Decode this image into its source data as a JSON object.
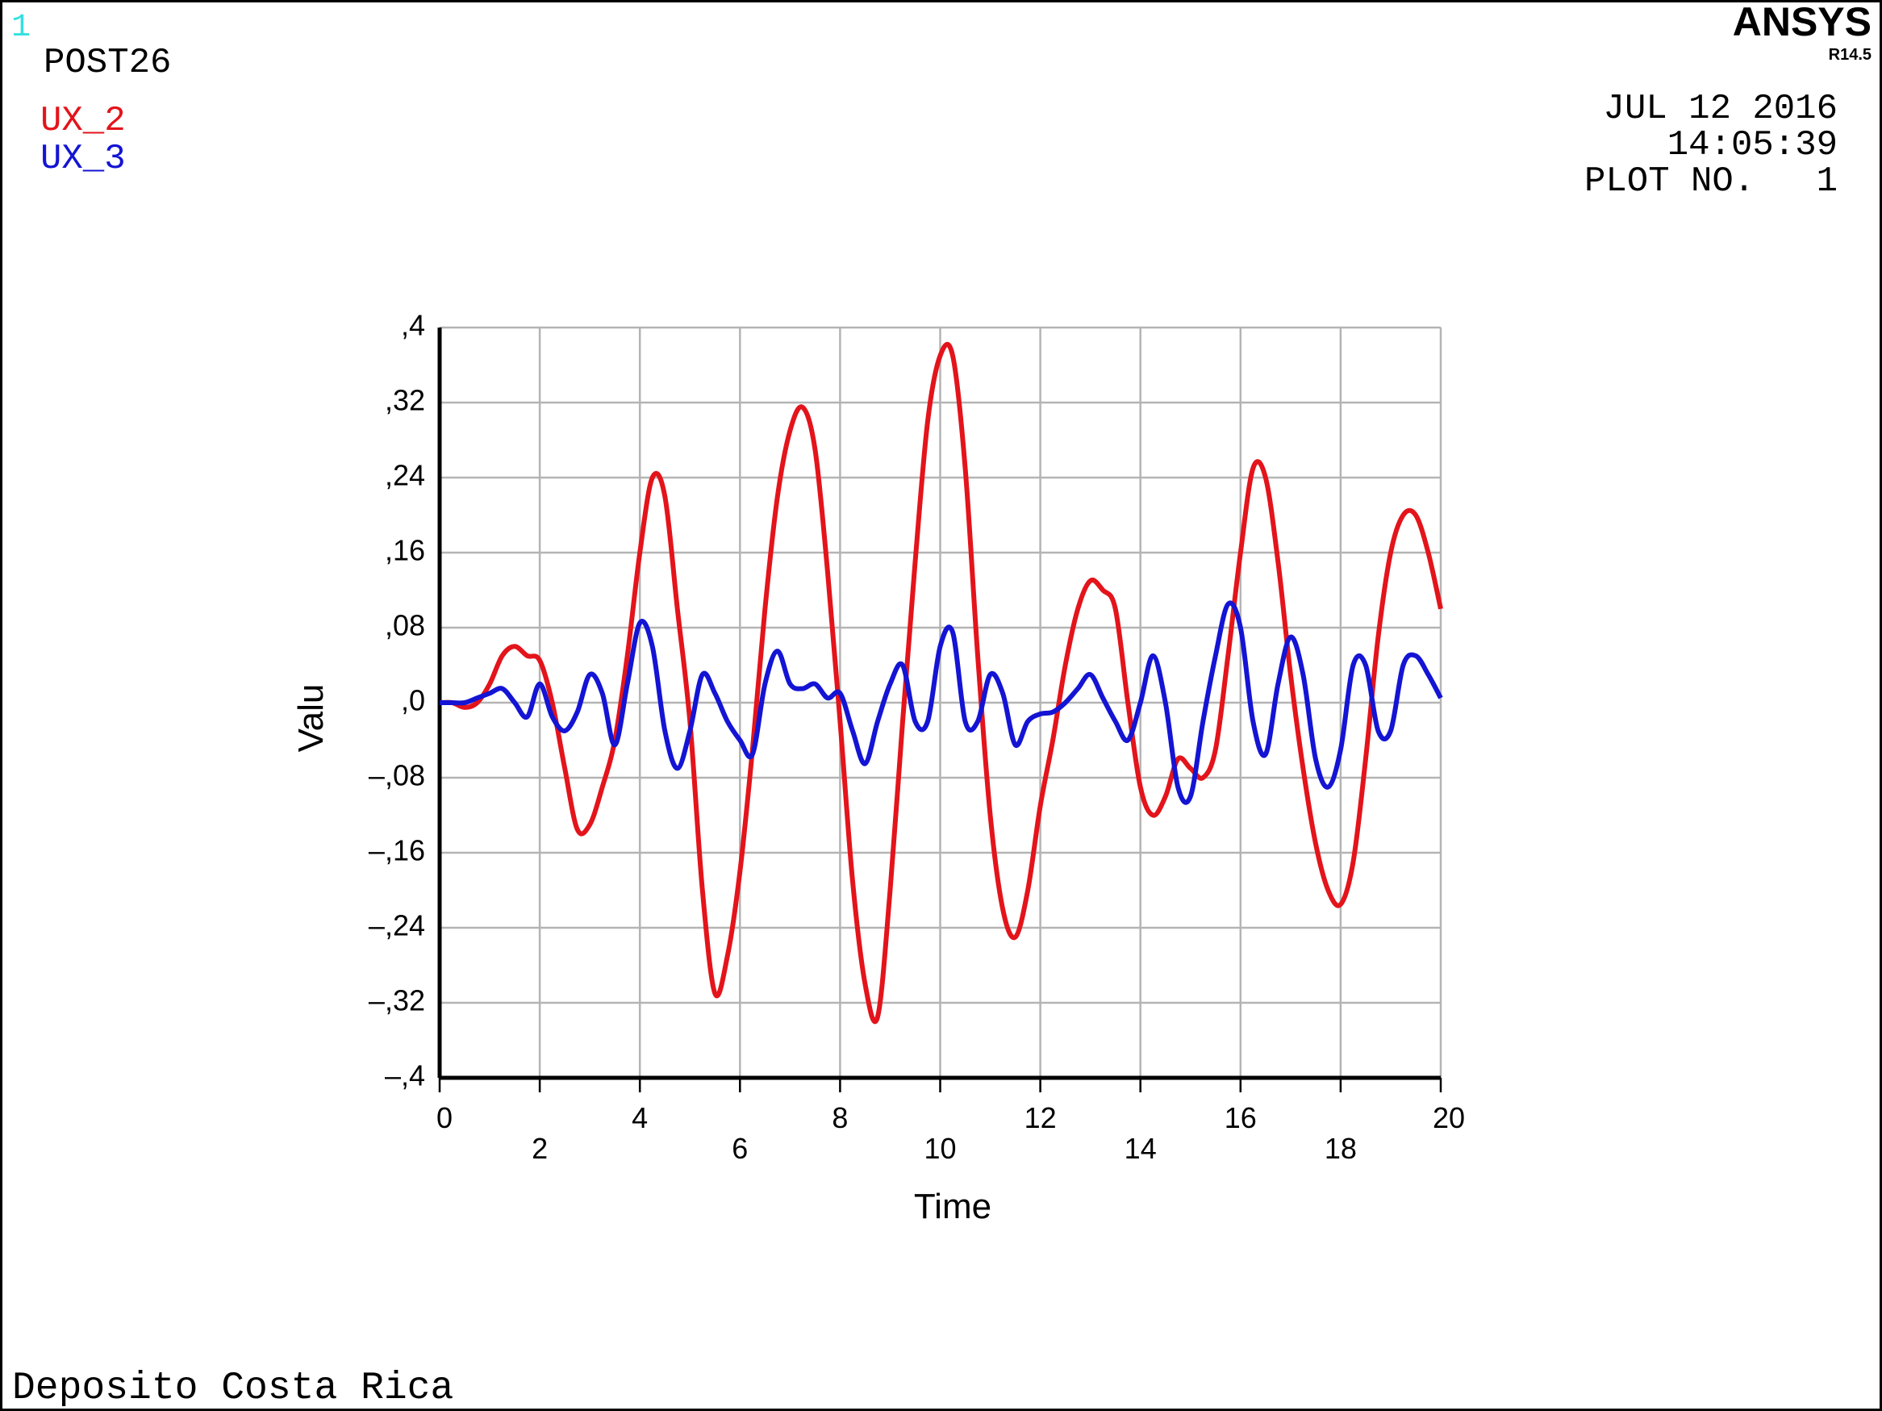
{
  "window_number": "1",
  "program": "POST26",
  "brand": "ANSYS",
  "version": "R14.5",
  "date": "JUL 12 2016",
  "time": "14:05:39",
  "plot_label": "PLOT NO.",
  "plot_number": "1",
  "footer": "Deposito Costa Rica",
  "chart_data": {
    "type": "line",
    "x_label": "Time",
    "y_label": "Valu",
    "grid": true,
    "x": [
      0,
      0.25,
      0.5,
      0.75,
      1,
      1.25,
      1.5,
      1.75,
      2,
      2.25,
      2.5,
      2.75,
      3,
      3.25,
      3.5,
      3.75,
      4,
      4.25,
      4.5,
      4.75,
      5,
      5.25,
      5.5,
      5.75,
      6,
      6.25,
      6.5,
      6.75,
      7,
      7.25,
      7.5,
      7.75,
      8,
      8.25,
      8.5,
      8.75,
      9,
      9.25,
      9.5,
      9.75,
      10,
      10.25,
      10.5,
      10.75,
      11,
      11.25,
      11.5,
      11.75,
      12,
      12.25,
      12.5,
      12.75,
      13,
      13.25,
      13.5,
      13.75,
      14,
      14.25,
      14.5,
      14.75,
      15,
      15.25,
      15.5,
      15.75,
      16,
      16.25,
      16.5,
      16.75,
      17,
      17.25,
      17.5,
      17.75,
      18,
      18.25,
      18.5,
      18.75,
      19,
      19.25,
      19.5,
      19.75,
      20
    ],
    "series": [
      {
        "name": "UX_2",
        "color": "#e3141b",
        "values": [
          0,
          0,
          -0.005,
          0,
          0.02,
          0.05,
          0.06,
          0.05,
          0.045,
          0,
          -0.07,
          -0.135,
          -0.13,
          -0.09,
          -0.04,
          0.05,
          0.16,
          0.24,
          0.22,
          0.1,
          -0.02,
          -0.2,
          -0.31,
          -0.27,
          -0.18,
          -0.05,
          0.1,
          0.22,
          0.29,
          0.315,
          0.27,
          0.14,
          -0.02,
          -0.19,
          -0.3,
          -0.335,
          -0.2,
          -0.02,
          0.15,
          0.3,
          0.37,
          0.37,
          0.25,
          0.05,
          -0.12,
          -0.22,
          -0.25,
          -0.2,
          -0.11,
          -0.04,
          0.04,
          0.1,
          0.13,
          0.12,
          0.1,
          0,
          -0.09,
          -0.12,
          -0.1,
          -0.06,
          -0.07,
          -0.08,
          -0.05,
          0.05,
          0.16,
          0.25,
          0.24,
          0.15,
          0.03,
          -0.07,
          -0.15,
          -0.2,
          -0.215,
          -0.17,
          -0.06,
          0.07,
          0.16,
          0.2,
          0.2,
          0.16,
          0.1
        ]
      },
      {
        "name": "UX_3",
        "color": "#1414d4",
        "values": [
          0,
          0,
          0,
          0.005,
          0.01,
          0.015,
          0,
          -0.015,
          0.02,
          -0.015,
          -0.03,
          -0.01,
          0.03,
          0.01,
          -0.045,
          0.02,
          0.085,
          0.06,
          -0.03,
          -0.07,
          -0.03,
          0.03,
          0.01,
          -0.02,
          -0.04,
          -0.055,
          0.02,
          0.055,
          0.02,
          0.015,
          0.02,
          0.005,
          0.01,
          -0.03,
          -0.065,
          -0.02,
          0.02,
          0.04,
          -0.02,
          -0.02,
          0.06,
          0.075,
          -0.02,
          -0.02,
          0.03,
          0.01,
          -0.045,
          -0.02,
          -0.012,
          -0.01,
          0,
          0.015,
          0.03,
          0.005,
          -0.02,
          -0.04,
          0,
          0.05,
          0,
          -0.09,
          -0.1,
          -0.02,
          0.05,
          0.105,
          0.08,
          -0.02,
          -0.055,
          0.02,
          0.07,
          0.03,
          -0.06,
          -0.09,
          -0.05,
          0.04,
          0.04,
          -0.03,
          -0.03,
          0.04,
          0.05,
          0.03,
          0.005
        ]
      }
    ],
    "xlim": [
      0,
      20
    ],
    "xticks": [
      0,
      2,
      4,
      6,
      8,
      10,
      12,
      14,
      16,
      18,
      20
    ],
    "ylim": [
      -0.4,
      0.4
    ],
    "yticks": [
      {
        "value": 0.4,
        "label": ",4"
      },
      {
        "value": 0.32,
        "label": ",32"
      },
      {
        "value": 0.24,
        "label": ",24"
      },
      {
        "value": 0.16,
        "label": ",16"
      },
      {
        "value": 0.08,
        "label": ",08"
      },
      {
        "value": 0,
        "label": ",0"
      },
      {
        "value": -0.08,
        "label": "–,08"
      },
      {
        "value": -0.16,
        "label": "–,16"
      },
      {
        "value": -0.24,
        "label": "–,24"
      },
      {
        "value": -0.32,
        "label": "–,32"
      },
      {
        "value": -0.4,
        "label": "–,4"
      }
    ]
  }
}
